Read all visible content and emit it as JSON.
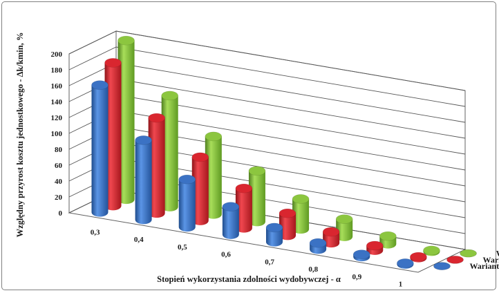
{
  "chart_data": {
    "type": "bar",
    "style": "3d-cylinder",
    "categories": [
      "0,3",
      "0,4",
      "0,5",
      "0,6",
      "0,7",
      "0,8",
      "0,9",
      "1"
    ],
    "series": [
      {
        "name": "Wariant I",
        "color": "#8cc63f",
        "values": [
          200,
          140,
          98,
          64,
          38,
          22,
          10,
          0
        ]
      },
      {
        "name": "Wariant II",
        "color": "#d9262f",
        "values": [
          180,
          120,
          80,
          50,
          28,
          14,
          6,
          0
        ]
      },
      {
        "name": "Wariant III",
        "color": "#3b72c4",
        "values": [
          160,
          100,
          60,
          35,
          18,
          8,
          3,
          0
        ]
      }
    ],
    "xlabel": "Stopień wykorzystania zdolności wydobywczej - α",
    "ylabel": "Względny przyrost kosztu jednostkowego - Δk/kmin, %",
    "ylim": [
      0,
      200
    ],
    "yticks": [
      "0",
      "20",
      "40",
      "60",
      "80",
      "100",
      "120",
      "140",
      "160",
      "180",
      "200"
    ],
    "grid": true,
    "legend": "right"
  }
}
